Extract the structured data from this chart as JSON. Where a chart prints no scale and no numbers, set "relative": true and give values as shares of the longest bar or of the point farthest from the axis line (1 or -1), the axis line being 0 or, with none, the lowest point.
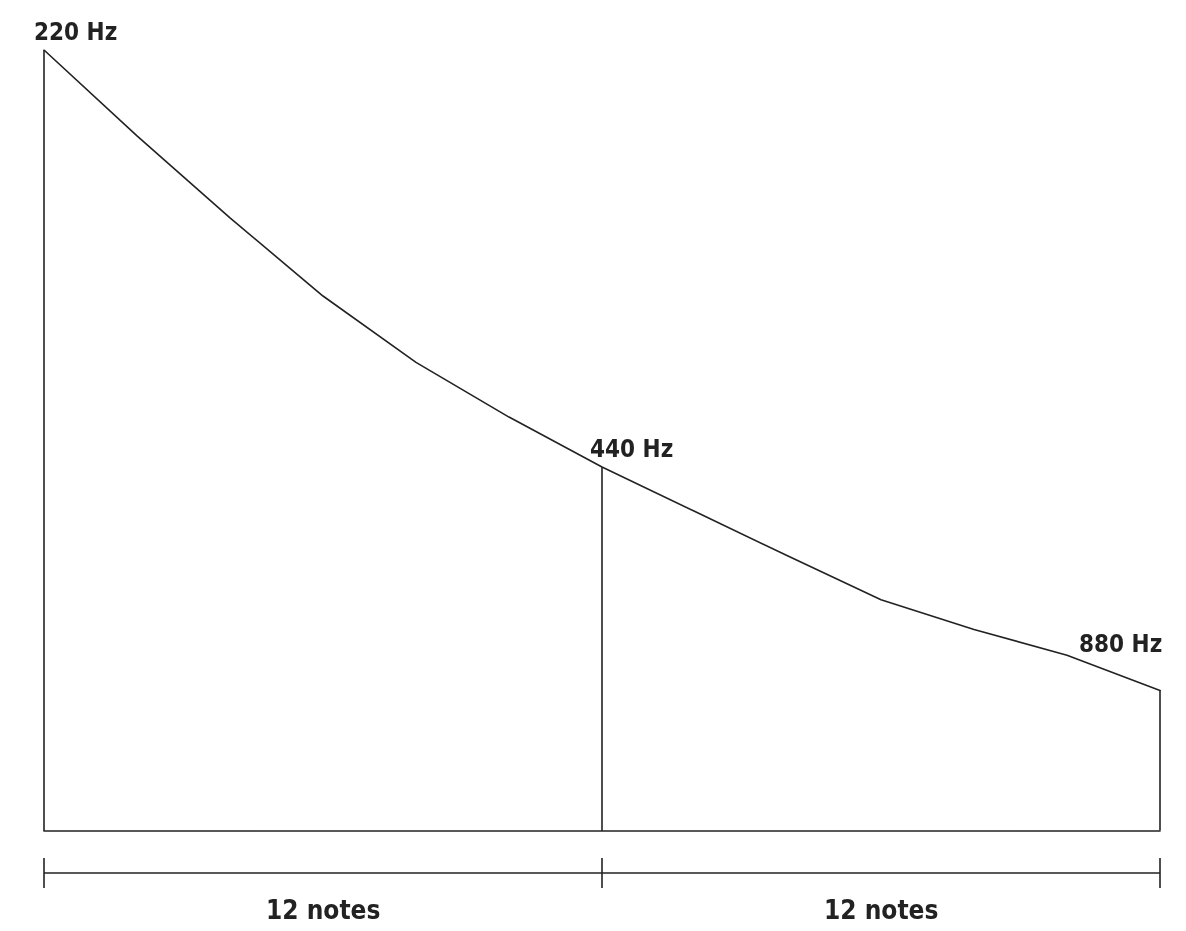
{
  "chart_data": {
    "type": "line",
    "relative": true,
    "categories": [
      null,
      null,
      null,
      null,
      null,
      null,
      null,
      null,
      null,
      null,
      null,
      null,
      null
    ],
    "series": [
      {
        "color": "#222222",
        "values": [
          1,
          0.89,
          0.785,
          0.685,
          0.6,
          0.53,
          0.466,
          0.409,
          0.352,
          0.296,
          0.258,
          0.225,
          0.18
        ]
      }
    ],
    "annotations": [
      "220 Hz",
      "440 Hz",
      "880 Hz",
      "12 notes",
      "12 notes"
    ],
    "grid": false,
    "marker": "none",
    "line_style": "solid"
  }
}
